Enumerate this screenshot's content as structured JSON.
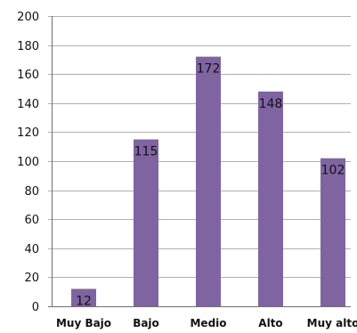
{
  "chart_data": {
    "type": "bar",
    "categories": [
      "Muy Bajo",
      "Bajo",
      "Medio",
      "Alto",
      "Muy alto"
    ],
    "series": [
      {
        "values": [
          12,
          115,
          172,
          148,
          102
        ]
      }
    ],
    "data_labels": [
      "12",
      "115",
      "172",
      "148",
      "102"
    ],
    "title": "",
    "xlabel": "",
    "ylabel": "",
    "ylim": [
      0,
      200
    ],
    "y_ticks": [
      0,
      20,
      40,
      60,
      80,
      100,
      120,
      140,
      160,
      180,
      200
    ],
    "y_tick_labels": [
      "0",
      "20",
      "40",
      "60",
      "80",
      "100",
      "120",
      "140",
      "160",
      "180",
      "200"
    ],
    "grid": true,
    "legend": "none",
    "colors": {
      "bar": "#8064a2",
      "grid": "#b0b0b0",
      "axis": "#6f6f6f",
      "text": "#111111"
    }
  }
}
